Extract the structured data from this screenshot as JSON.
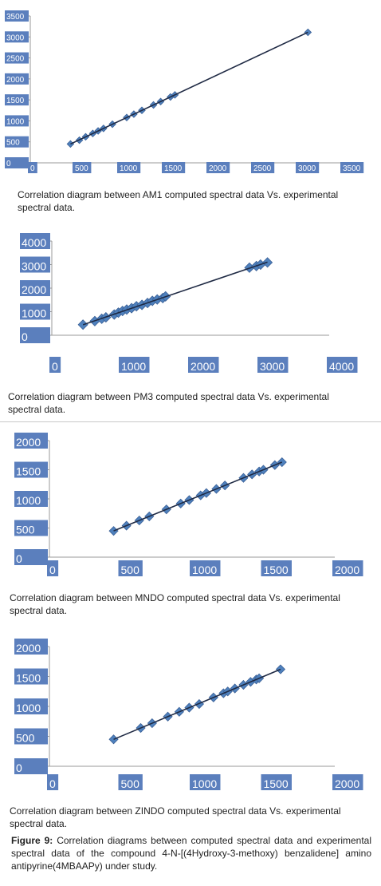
{
  "charts": [
    {
      "caption": "Correlation diagram between AM1 computed spectral data Vs. experimental spectral data.",
      "chart_data": {
        "type": "scatter",
        "xlim": [
          0,
          3500
        ],
        "ylim": [
          0,
          3500
        ],
        "xticks": [
          "0",
          "500",
          "1000",
          "1500",
          "2000",
          "2500",
          "3000",
          "3500"
        ],
        "yticks": [
          "0",
          "500",
          "1000",
          "1500",
          "2000",
          "2500",
          "3000",
          "3500"
        ],
        "grid": false,
        "legend": "none",
        "trendline": true,
        "marker_color": "#4f81bd",
        "line_color": "#1f2a44",
        "x": [
          450,
          550,
          620,
          700,
          760,
          820,
          920,
          1080,
          1160,
          1250,
          1380,
          1460,
          1570,
          1620,
          3110
        ],
        "y": [
          450,
          540,
          620,
          700,
          760,
          820,
          920,
          1080,
          1160,
          1250,
          1380,
          1460,
          1570,
          1620,
          3110
        ]
      }
    },
    {
      "caption": "Correlation diagram between PM3 computed spectral data Vs. experimental spectral data.",
      "chart_data": {
        "type": "scatter",
        "xlim": [
          0,
          4000
        ],
        "ylim": [
          0,
          4000
        ],
        "xticks": [
          "0",
          "1000",
          "2000",
          "3000",
          "4000"
        ],
        "yticks": [
          "0",
          "1000",
          "2000",
          "3000",
          "4000"
        ],
        "grid": false,
        "legend": "none",
        "trendline": true,
        "marker_color": "#4f81bd",
        "line_color": "#1f2a44",
        "x": [
          450,
          620,
          720,
          780,
          900,
          960,
          1020,
          1080,
          1150,
          1220,
          1300,
          1380,
          1450,
          1520,
          1600,
          1640,
          2850,
          2950,
          3010,
          3110
        ],
        "y": [
          450,
          600,
          700,
          760,
          880,
          960,
          1030,
          1090,
          1150,
          1230,
          1290,
          1370,
          1460,
          1520,
          1580,
          1650,
          2870,
          2940,
          3000,
          3090
        ]
      }
    },
    {
      "caption": "Correlation diagram between MNDO computed spectral data Vs. experimental spectral data.",
      "chart_data": {
        "type": "scatter",
        "xlim": [
          0,
          2000
        ],
        "ylim": [
          0,
          2000
        ],
        "xticks": [
          "0",
          "500",
          "1000",
          "1500",
          "2000"
        ],
        "yticks": [
          "0",
          "500",
          "1000",
          "1500",
          "2000"
        ],
        "grid": false,
        "legend": "none",
        "trendline": true,
        "marker_color": "#4f81bd",
        "line_color": "#1f2a44",
        "x": [
          450,
          540,
          630,
          700,
          820,
          920,
          980,
          1060,
          1100,
          1170,
          1230,
          1360,
          1420,
          1470,
          1500,
          1580,
          1630
        ],
        "y": [
          450,
          540,
          630,
          700,
          820,
          920,
          980,
          1060,
          1100,
          1170,
          1230,
          1360,
          1420,
          1470,
          1500,
          1580,
          1630
        ]
      }
    },
    {
      "caption": "Correlation diagram between ZINDO computed spectral data Vs. experimental spectral data.",
      "chart_data": {
        "type": "scatter",
        "xlim": [
          0,
          2000
        ],
        "ylim": [
          0,
          2000
        ],
        "xticks": [
          "0",
          "500",
          "1000",
          "1500",
          "2000"
        ],
        "yticks": [
          "0",
          "500",
          "1000",
          "1500",
          "2000"
        ],
        "grid": false,
        "legend": "none",
        "trendline": true,
        "marker_color": "#4f81bd",
        "line_color": "#1f2a44",
        "x": [
          450,
          640,
          720,
          830,
          910,
          980,
          1050,
          1150,
          1220,
          1250,
          1300,
          1360,
          1410,
          1450,
          1470,
          1620
        ],
        "y": [
          450,
          640,
          720,
          830,
          910,
          980,
          1040,
          1150,
          1220,
          1250,
          1300,
          1360,
          1410,
          1450,
          1470,
          1620
        ]
      }
    }
  ],
  "figure": {
    "label": "Figure 9:",
    "text": " Correlation diagrams between computed spectral data and experimental spectral data of the compound 4-N-[(4Hydroxy-3-methoxy) benzalidene] amino antipyrine(4MBAAPy) under study."
  }
}
